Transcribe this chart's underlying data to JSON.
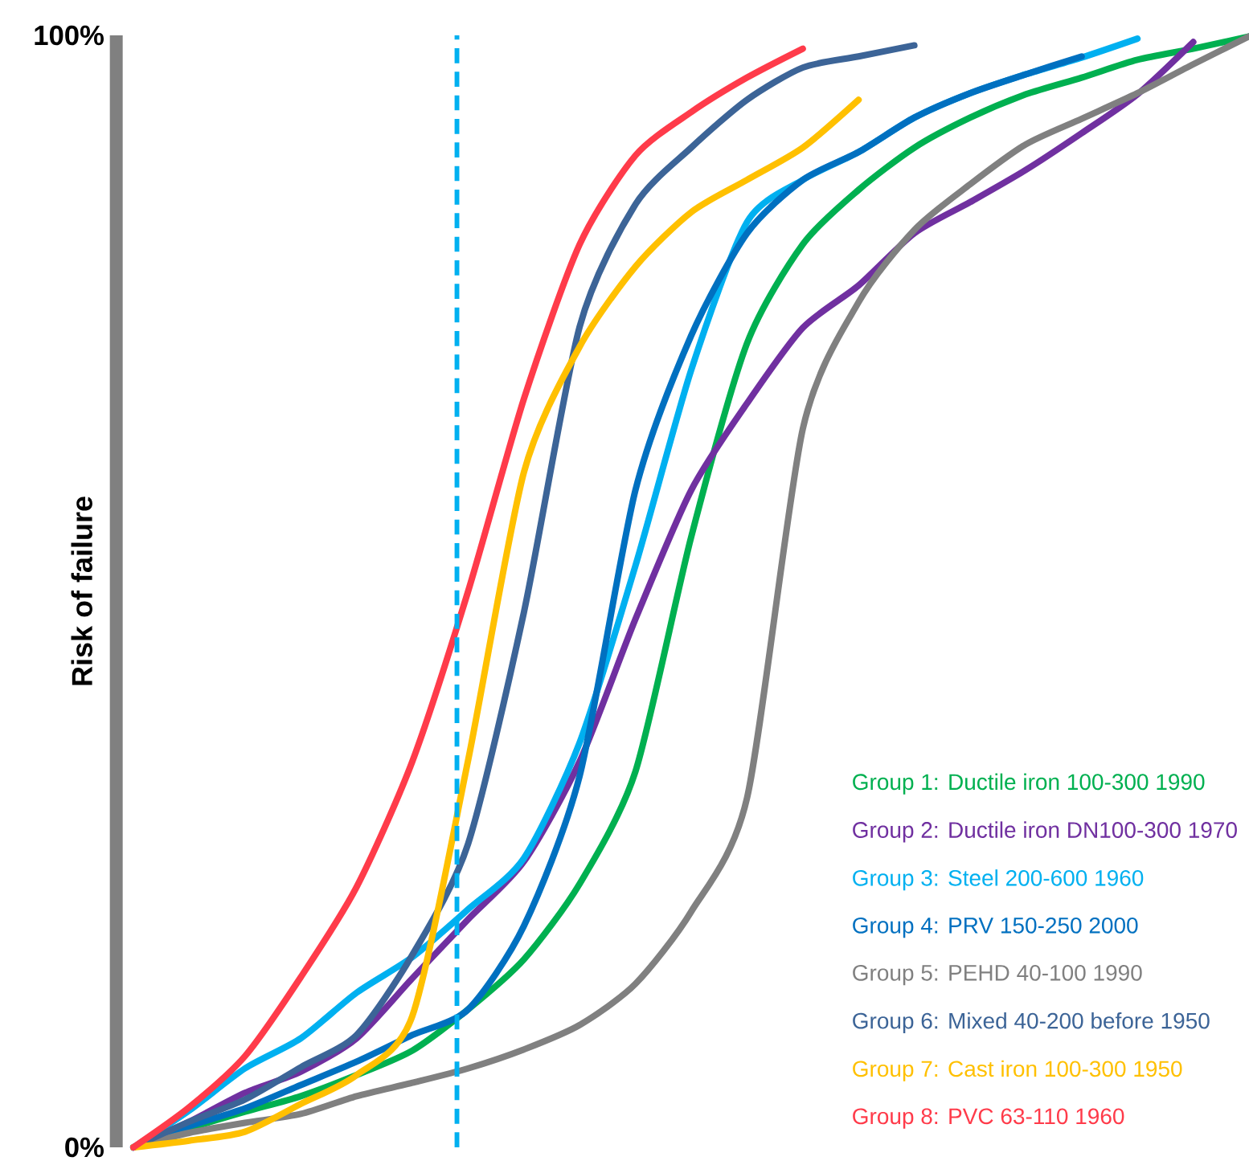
{
  "chart_data": {
    "type": "line",
    "ylabel": "Risk of failure",
    "categories": [
      null,
      null,
      null,
      null,
      null,
      null,
      null,
      null,
      null,
      null,
      null,
      null,
      null,
      null,
      null,
      null,
      null,
      null,
      null,
      null,
      null
    ],
    "ylim": [
      0,
      100
    ],
    "yticks": [
      {
        "value": 0,
        "label": "0%"
      },
      {
        "value": 100,
        "label": "100%"
      }
    ],
    "tick_labels": "y",
    "legend": "bottom right",
    "series": [
      {
        "name": "Group 1: Ductile iron 100-300 1990",
        "color": "#00b050",
        "values": [
          0,
          1.7,
          3.2,
          4.6,
          6.5,
          8.7,
          12.4,
          16.9,
          23.7,
          33.8,
          54.9,
          72.3,
          81.2,
          86.1,
          89.9,
          92.6,
          94.7,
          96.2,
          97.8,
          98.8,
          99.9
        ]
      },
      {
        "name": "Group 2: Ductile iron DN100-300 1970",
        "color": "#7030a0",
        "values": [
          0,
          2.3,
          4.9,
          6.8,
          9.8,
          15.2,
          20.5,
          25.7,
          34.7,
          47.5,
          59.1,
          66.9,
          73.7,
          77.5,
          82.2,
          85.0,
          87.9,
          91.2,
          94.7,
          99.4,
          null
        ]
      },
      {
        "name": "Group 3: Steel 200-600 1960",
        "color": "#00b0f0",
        "values": [
          0,
          3.3,
          7.1,
          9.8,
          13.9,
          17.1,
          21.4,
          26.0,
          36.4,
          52.3,
          69.9,
          83.2,
          87.0,
          89.5,
          92.6,
          94.8,
          96.5,
          98.0,
          99.7,
          null,
          null
        ]
      },
      {
        "name": "Group 4: PRV 150-250 2000",
        "color": "#0070c0",
        "values": [
          0,
          1.9,
          3.5,
          5.6,
          7.7,
          10.1,
          12.4,
          19.9,
          33.4,
          59.1,
          73.0,
          82.2,
          87.0,
          89.5,
          92.6,
          94.8,
          96.5,
          98.1,
          null,
          null,
          null
        ]
      },
      {
        "name": "Group 5: PEHD 40-100 1990",
        "color": "#808080",
        "values": [
          0,
          1.3,
          2.2,
          3.0,
          4.6,
          5.8,
          7.1,
          8.8,
          11.0,
          14.7,
          21.2,
          31.4,
          64.6,
          76.0,
          82.5,
          86.6,
          90.2,
          92.5,
          94.8,
          97.4,
          99.9
        ]
      },
      {
        "name": "Group 6: Mixed 40-200 before 1950",
        "color": "#3c6497",
        "values": [
          0,
          2.3,
          4.3,
          7.2,
          10.1,
          17.3,
          27.3,
          48.1,
          73.8,
          84.8,
          89.9,
          94.2,
          97.1,
          98.1,
          99.1,
          null,
          null,
          null,
          null,
          null,
          null
        ]
      },
      {
        "name": "Group 7: Cast iron 100-300 1950",
        "color": "#ffc000",
        "values": [
          0,
          0.6,
          1.4,
          3.9,
          6.5,
          11.8,
          34.8,
          60.7,
          72.0,
          79.2,
          84.1,
          87.0,
          89.9,
          94.2,
          null,
          null,
          null,
          null,
          null,
          null,
          null
        ]
      },
      {
        "name": "Group 8: PVC 63-110 1960",
        "color": "#ff3b4a",
        "values": [
          0,
          3.6,
          8.2,
          15.3,
          23.4,
          34.7,
          50.0,
          67.3,
          81.2,
          89.2,
          93.1,
          96.2,
          98.8,
          null,
          null,
          null,
          null,
          null,
          null,
          null,
          null
        ]
      }
    ]
  }
}
